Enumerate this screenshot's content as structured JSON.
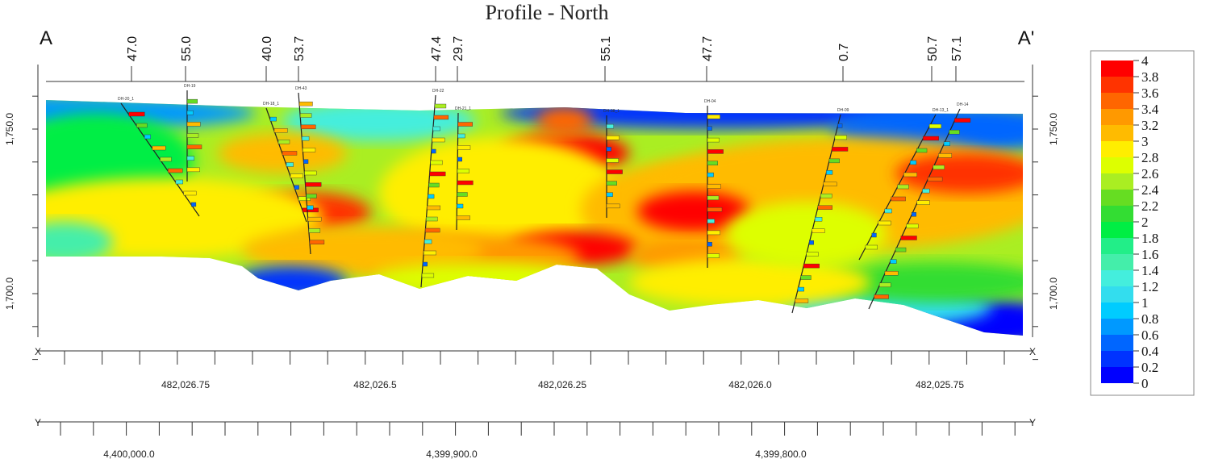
{
  "chart_data": {
    "type": "heatmap",
    "title": "Profile - North",
    "section_ends": {
      "left": "A",
      "right": "A'"
    },
    "elevation_axis": {
      "ticks": [
        "1,750.0",
        "1,700.0"
      ],
      "tick_values": [
        1750,
        1700
      ],
      "range": [
        1675,
        1765
      ]
    },
    "x_axis": {
      "label": "X",
      "ticks": [
        "482,026.75",
        "482,026.5",
        "482,026.25",
        "482,026.0",
        "482,025.75"
      ]
    },
    "y_axis": {
      "label": "Y",
      "ticks": [
        "4,400,000.0",
        "4,399,900.0",
        "4,399,800.0"
      ]
    },
    "dip_labels": [
      "47.0",
      "55.0",
      "40.0",
      "53.7",
      "47.4",
      "29.7",
      "55.1",
      "47.7",
      "0.7",
      "50.7",
      "57.1"
    ],
    "drillholes": [
      "DH-20_1",
      "DH-19",
      "DH-18_1",
      "DH-43",
      "DH-22",
      "DH-21_1",
      "DH-38_1",
      "DH-04",
      "DH-09",
      "DH-13_1",
      "DH-14"
    ],
    "colorscale": {
      "labels": [
        "4",
        "3.8",
        "3.6",
        "3.4",
        "3.2",
        "3",
        "2.8",
        "2.6",
        "2.4",
        "2.2",
        "2",
        "1.8",
        "1.6",
        "1.4",
        "1.2",
        "1",
        "0.8",
        "0.6",
        "0.4",
        "0.2",
        "0"
      ],
      "colors": [
        "#ff0000",
        "#ff3300",
        "#ff6600",
        "#ff9900",
        "#ffbb00",
        "#ffee00",
        "#ddff00",
        "#aaee22",
        "#66dd22",
        "#33dd33",
        "#00ee44",
        "#22ee88",
        "#44eeaa",
        "#44eedd",
        "#33ddee",
        "#00ccff",
        "#0099ff",
        "#0066ff",
        "#0033ff",
        "#0000ff"
      ]
    }
  }
}
